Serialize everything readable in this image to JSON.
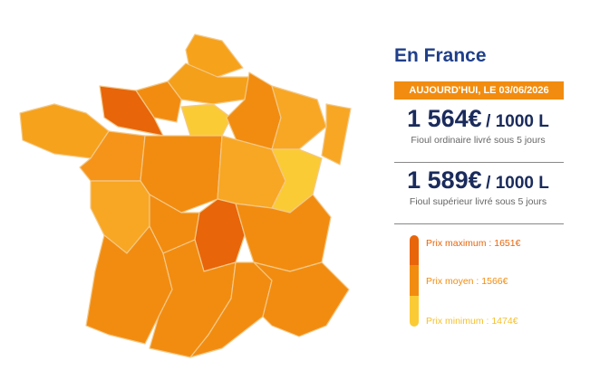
{
  "panel": {
    "title": "En France",
    "date": "AUJOURD'HUI, LE 03/06/2026",
    "prices": [
      {
        "amount": "1 564€",
        "unit": "/ 1000 L",
        "caption": "Fioul ordinaire livré sous 5 jours"
      },
      {
        "amount": "1 589€",
        "unit": "/ 1000 L",
        "caption": "Fioul supérieur livré sous 5 jours"
      }
    ],
    "legend": [
      "Prix maximum : 1651€",
      "Prix moyen : 1566€",
      "Prix minimum : 1474€"
    ]
  }
}
